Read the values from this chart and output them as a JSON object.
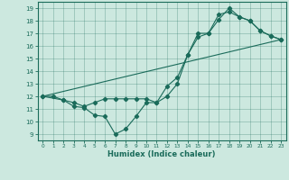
{
  "xlabel": "Humidex (Indice chaleur)",
  "xlim": [
    -0.5,
    23.5
  ],
  "ylim": [
    8.5,
    19.5
  ],
  "yticks": [
    9,
    10,
    11,
    12,
    13,
    14,
    15,
    16,
    17,
    18,
    19
  ],
  "xticks": [
    0,
    1,
    2,
    3,
    4,
    5,
    6,
    7,
    8,
    9,
    10,
    11,
    12,
    13,
    14,
    15,
    16,
    17,
    18,
    19,
    20,
    21,
    22,
    23
  ],
  "bg_color": "#cce8df",
  "line_color": "#1a6b5a",
  "line1_x": [
    0,
    1,
    2,
    3,
    4,
    5,
    6,
    7,
    8,
    9,
    10,
    11,
    12,
    13,
    14,
    15,
    16,
    17,
    18,
    19,
    20,
    21,
    22,
    23
  ],
  "line1_y": [
    12,
    12,
    11.7,
    11.2,
    11.1,
    10.5,
    10.4,
    9.0,
    9.4,
    10.4,
    11.5,
    11.5,
    12.0,
    13.0,
    15.3,
    17.0,
    17.0,
    18.1,
    19.0,
    18.3,
    18.0,
    17.2,
    16.8,
    16.5
  ],
  "line2_x": [
    0,
    2,
    3,
    4,
    5,
    6,
    7,
    8,
    9,
    10,
    11,
    12,
    13,
    14,
    15,
    16,
    17,
    18,
    19,
    20,
    21,
    22,
    23
  ],
  "line2_y": [
    12,
    11.7,
    11.5,
    11.2,
    11.5,
    11.8,
    11.8,
    11.8,
    11.8,
    11.8,
    11.5,
    12.8,
    13.5,
    15.3,
    16.7,
    17.0,
    18.5,
    18.7,
    18.3,
    18.0,
    17.2,
    16.8,
    16.5
  ],
  "line3_x": [
    0,
    23
  ],
  "line3_y": [
    12,
    16.5
  ]
}
